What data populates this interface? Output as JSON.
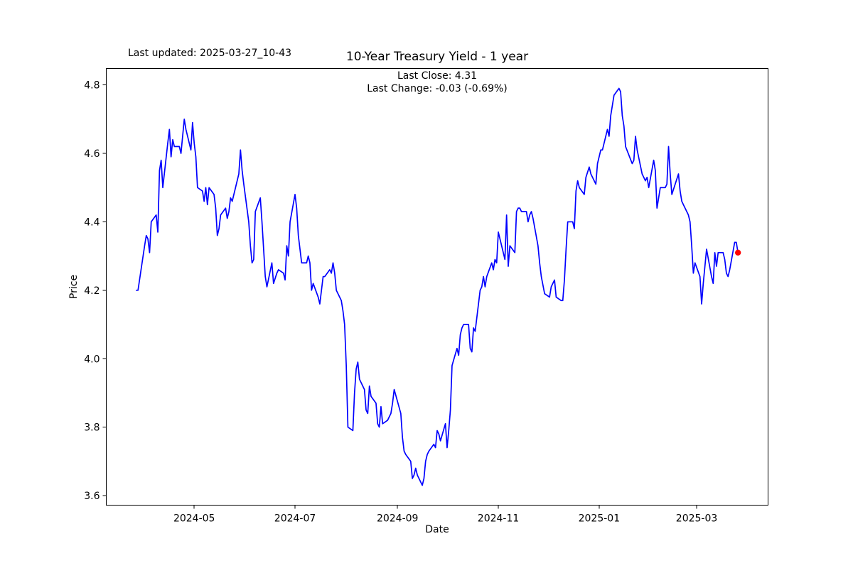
{
  "figure": {
    "last_updated": "Last updated: 2025-03-27_10-43",
    "title": "10-Year Treasury Yield - 1 year",
    "subtitle_line1": "Last Close: 4.31",
    "subtitle_line2": "Last Change: -0.03 (-0.69%)",
    "xlabel": "Date",
    "ylabel": "Price"
  },
  "chart_data": {
    "type": "line",
    "title": "10-Year Treasury Yield - 1 year",
    "xlabel": "Date",
    "ylabel": "Price",
    "last_close": 4.31,
    "last_change": -0.03,
    "last_change_pct": "-0.69%",
    "grid": false,
    "legend": null,
    "line_color": "#0000ff",
    "last_point_marker_color": "#ff0000",
    "axis_color": "#000000",
    "x_tick_labels": [
      "2024-05",
      "2024-07",
      "2024-09",
      "2024-11",
      "2025-01",
      "2025-03"
    ],
    "y_tick_labels": [
      "3.6",
      "3.8",
      "4.0",
      "4.2",
      "4.4",
      "4.6",
      "4.8"
    ],
    "ylim_data": [
      3.63,
      4.79
    ],
    "series": [
      {
        "name": "10-Year Treasury Yield",
        "points": [
          [
            "2024-03-27",
            4.2
          ],
          [
            "2024-03-28",
            4.2
          ],
          [
            "2024-04-01",
            4.33
          ],
          [
            "2024-04-02",
            4.36
          ],
          [
            "2024-04-03",
            4.35
          ],
          [
            "2024-04-04",
            4.31
          ],
          [
            "2024-04-05",
            4.4
          ],
          [
            "2024-04-08",
            4.42
          ],
          [
            "2024-04-09",
            4.37
          ],
          [
            "2024-04-10",
            4.55
          ],
          [
            "2024-04-11",
            4.58
          ],
          [
            "2024-04-12",
            4.5
          ],
          [
            "2024-04-15",
            4.63
          ],
          [
            "2024-04-16",
            4.67
          ],
          [
            "2024-04-17",
            4.59
          ],
          [
            "2024-04-18",
            4.64
          ],
          [
            "2024-04-19",
            4.62
          ],
          [
            "2024-04-22",
            4.62
          ],
          [
            "2024-04-23",
            4.6
          ],
          [
            "2024-04-24",
            4.65
          ],
          [
            "2024-04-25",
            4.7
          ],
          [
            "2024-04-26",
            4.67
          ],
          [
            "2024-04-29",
            4.61
          ],
          [
            "2024-04-30",
            4.69
          ],
          [
            "2024-05-01",
            4.63
          ],
          [
            "2024-05-02",
            4.59
          ],
          [
            "2024-05-03",
            4.5
          ],
          [
            "2024-05-06",
            4.49
          ],
          [
            "2024-05-07",
            4.46
          ],
          [
            "2024-05-08",
            4.5
          ],
          [
            "2024-05-09",
            4.45
          ],
          [
            "2024-05-10",
            4.5
          ],
          [
            "2024-05-13",
            4.48
          ],
          [
            "2024-05-14",
            4.44
          ],
          [
            "2024-05-15",
            4.36
          ],
          [
            "2024-05-16",
            4.38
          ],
          [
            "2024-05-17",
            4.42
          ],
          [
            "2024-05-20",
            4.44
          ],
          [
            "2024-05-21",
            4.41
          ],
          [
            "2024-05-22",
            4.43
          ],
          [
            "2024-05-23",
            4.47
          ],
          [
            "2024-05-24",
            4.46
          ],
          [
            "2024-05-28",
            4.54
          ],
          [
            "2024-05-29",
            4.61
          ],
          [
            "2024-05-30",
            4.55
          ],
          [
            "2024-05-31",
            4.51
          ],
          [
            "2024-06-03",
            4.4
          ],
          [
            "2024-06-04",
            4.33
          ],
          [
            "2024-06-05",
            4.28
          ],
          [
            "2024-06-06",
            4.29
          ],
          [
            "2024-06-07",
            4.43
          ],
          [
            "2024-06-10",
            4.47
          ],
          [
            "2024-06-11",
            4.4
          ],
          [
            "2024-06-12",
            4.32
          ],
          [
            "2024-06-13",
            4.24
          ],
          [
            "2024-06-14",
            4.21
          ],
          [
            "2024-06-17",
            4.28
          ],
          [
            "2024-06-18",
            4.22
          ],
          [
            "2024-06-20",
            4.25
          ],
          [
            "2024-06-21",
            4.26
          ],
          [
            "2024-06-24",
            4.25
          ],
          [
            "2024-06-25",
            4.23
          ],
          [
            "2024-06-26",
            4.33
          ],
          [
            "2024-06-27",
            4.3
          ],
          [
            "2024-06-28",
            4.4
          ],
          [
            "2024-07-01",
            4.48
          ],
          [
            "2024-07-02",
            4.44
          ],
          [
            "2024-07-03",
            4.36
          ],
          [
            "2024-07-05",
            4.28
          ],
          [
            "2024-07-08",
            4.28
          ],
          [
            "2024-07-09",
            4.3
          ],
          [
            "2024-07-10",
            4.28
          ],
          [
            "2024-07-11",
            4.2
          ],
          [
            "2024-07-12",
            4.22
          ],
          [
            "2024-07-15",
            4.18
          ],
          [
            "2024-07-16",
            4.16
          ],
          [
            "2024-07-17",
            4.2
          ],
          [
            "2024-07-18",
            4.24
          ],
          [
            "2024-07-19",
            4.24
          ],
          [
            "2024-07-22",
            4.26
          ],
          [
            "2024-07-23",
            4.25
          ],
          [
            "2024-07-24",
            4.28
          ],
          [
            "2024-07-25",
            4.25
          ],
          [
            "2024-07-26",
            4.2
          ],
          [
            "2024-07-29",
            4.17
          ],
          [
            "2024-07-30",
            4.14
          ],
          [
            "2024-07-31",
            4.1
          ],
          [
            "2024-08-01",
            3.98
          ],
          [
            "2024-08-02",
            3.8
          ],
          [
            "2024-08-05",
            3.79
          ],
          [
            "2024-08-06",
            3.9
          ],
          [
            "2024-08-07",
            3.97
          ],
          [
            "2024-08-08",
            3.99
          ],
          [
            "2024-08-09",
            3.94
          ],
          [
            "2024-08-12",
            3.91
          ],
          [
            "2024-08-13",
            3.85
          ],
          [
            "2024-08-14",
            3.84
          ],
          [
            "2024-08-15",
            3.92
          ],
          [
            "2024-08-16",
            3.89
          ],
          [
            "2024-08-19",
            3.87
          ],
          [
            "2024-08-20",
            3.81
          ],
          [
            "2024-08-21",
            3.8
          ],
          [
            "2024-08-22",
            3.86
          ],
          [
            "2024-08-23",
            3.81
          ],
          [
            "2024-08-26",
            3.82
          ],
          [
            "2024-08-27",
            3.83
          ],
          [
            "2024-08-28",
            3.84
          ],
          [
            "2024-08-29",
            3.87
          ],
          [
            "2024-08-30",
            3.91
          ],
          [
            "2024-09-03",
            3.84
          ],
          [
            "2024-09-04",
            3.77
          ],
          [
            "2024-09-05",
            3.73
          ],
          [
            "2024-09-06",
            3.72
          ],
          [
            "2024-09-09",
            3.7
          ],
          [
            "2024-09-10",
            3.65
          ],
          [
            "2024-09-11",
            3.66
          ],
          [
            "2024-09-12",
            3.68
          ],
          [
            "2024-09-13",
            3.66
          ],
          [
            "2024-09-16",
            3.63
          ],
          [
            "2024-09-17",
            3.65
          ],
          [
            "2024-09-18",
            3.7
          ],
          [
            "2024-09-19",
            3.72
          ],
          [
            "2024-09-20",
            3.73
          ],
          [
            "2024-09-23",
            3.75
          ],
          [
            "2024-09-24",
            3.74
          ],
          [
            "2024-09-25",
            3.79
          ],
          [
            "2024-09-26",
            3.78
          ],
          [
            "2024-09-27",
            3.76
          ],
          [
            "2024-09-30",
            3.81
          ],
          [
            "2024-10-01",
            3.74
          ],
          [
            "2024-10-02",
            3.79
          ],
          [
            "2024-10-03",
            3.85
          ],
          [
            "2024-10-04",
            3.98
          ],
          [
            "2024-10-07",
            4.03
          ],
          [
            "2024-10-08",
            4.01
          ],
          [
            "2024-10-09",
            4.07
          ],
          [
            "2024-10-10",
            4.09
          ],
          [
            "2024-10-11",
            4.1
          ],
          [
            "2024-10-14",
            4.1
          ],
          [
            "2024-10-15",
            4.03
          ],
          [
            "2024-10-16",
            4.02
          ],
          [
            "2024-10-17",
            4.09
          ],
          [
            "2024-10-18",
            4.08
          ],
          [
            "2024-10-21",
            4.2
          ],
          [
            "2024-10-22",
            4.21
          ],
          [
            "2024-10-23",
            4.24
          ],
          [
            "2024-10-24",
            4.21
          ],
          [
            "2024-10-25",
            4.24
          ],
          [
            "2024-10-28",
            4.28
          ],
          [
            "2024-10-29",
            4.26
          ],
          [
            "2024-10-30",
            4.29
          ],
          [
            "2024-10-31",
            4.28
          ],
          [
            "2024-11-01",
            4.37
          ],
          [
            "2024-11-04",
            4.31
          ],
          [
            "2024-11-05",
            4.29
          ],
          [
            "2024-11-06",
            4.42
          ],
          [
            "2024-11-07",
            4.27
          ],
          [
            "2024-11-08",
            4.33
          ],
          [
            "2024-11-11",
            4.31
          ],
          [
            "2024-11-12",
            4.43
          ],
          [
            "2024-11-13",
            4.44
          ],
          [
            "2024-11-14",
            4.44
          ],
          [
            "2024-11-15",
            4.43
          ],
          [
            "2024-11-18",
            4.43
          ],
          [
            "2024-11-19",
            4.4
          ],
          [
            "2024-11-20",
            4.42
          ],
          [
            "2024-11-21",
            4.43
          ],
          [
            "2024-11-22",
            4.41
          ],
          [
            "2024-11-25",
            4.33
          ],
          [
            "2024-11-26",
            4.28
          ],
          [
            "2024-11-27",
            4.24
          ],
          [
            "2024-11-29",
            4.19
          ],
          [
            "2024-12-02",
            4.18
          ],
          [
            "2024-12-03",
            4.21
          ],
          [
            "2024-12-04",
            4.22
          ],
          [
            "2024-12-05",
            4.23
          ],
          [
            "2024-12-06",
            4.18
          ],
          [
            "2024-12-09",
            4.17
          ],
          [
            "2024-12-10",
            4.17
          ],
          [
            "2024-12-11",
            4.23
          ],
          [
            "2024-12-12",
            4.32
          ],
          [
            "2024-12-13",
            4.4
          ],
          [
            "2024-12-16",
            4.4
          ],
          [
            "2024-12-17",
            4.38
          ],
          [
            "2024-12-18",
            4.49
          ],
          [
            "2024-12-19",
            4.52
          ],
          [
            "2024-12-20",
            4.5
          ],
          [
            "2024-12-23",
            4.48
          ],
          [
            "2024-12-24",
            4.53
          ],
          [
            "2024-12-26",
            4.56
          ],
          [
            "2024-12-27",
            4.54
          ],
          [
            "2024-12-30",
            4.51
          ],
          [
            "2024-12-31",
            4.57
          ],
          [
            "2025-01-02",
            4.61
          ],
          [
            "2025-01-03",
            4.61
          ],
          [
            "2025-01-06",
            4.67
          ],
          [
            "2025-01-07",
            4.65
          ],
          [
            "2025-01-08",
            4.71
          ],
          [
            "2025-01-10",
            4.77
          ],
          [
            "2025-01-13",
            4.79
          ],
          [
            "2025-01-14",
            4.78
          ],
          [
            "2025-01-15",
            4.71
          ],
          [
            "2025-01-16",
            4.68
          ],
          [
            "2025-01-17",
            4.62
          ],
          [
            "2025-01-21",
            4.57
          ],
          [
            "2025-01-22",
            4.58
          ],
          [
            "2025-01-23",
            4.65
          ],
          [
            "2025-01-24",
            4.61
          ],
          [
            "2025-01-27",
            4.54
          ],
          [
            "2025-01-28",
            4.53
          ],
          [
            "2025-01-29",
            4.52
          ],
          [
            "2025-01-30",
            4.53
          ],
          [
            "2025-01-31",
            4.5
          ],
          [
            "2025-02-03",
            4.58
          ],
          [
            "2025-02-04",
            4.55
          ],
          [
            "2025-02-05",
            4.44
          ],
          [
            "2025-02-06",
            4.47
          ],
          [
            "2025-02-07",
            4.5
          ],
          [
            "2025-02-10",
            4.5
          ],
          [
            "2025-02-11",
            4.51
          ],
          [
            "2025-02-12",
            4.62
          ],
          [
            "2025-02-13",
            4.54
          ],
          [
            "2025-02-14",
            4.48
          ],
          [
            "2025-02-18",
            4.54
          ],
          [
            "2025-02-19",
            4.49
          ],
          [
            "2025-02-20",
            4.46
          ],
          [
            "2025-02-21",
            4.45
          ],
          [
            "2025-02-24",
            4.42
          ],
          [
            "2025-02-25",
            4.4
          ],
          [
            "2025-02-26",
            4.33
          ],
          [
            "2025-02-27",
            4.25
          ],
          [
            "2025-02-28",
            4.28
          ],
          [
            "2025-03-03",
            4.24
          ],
          [
            "2025-03-04",
            4.16
          ],
          [
            "2025-03-05",
            4.22
          ],
          [
            "2025-03-06",
            4.27
          ],
          [
            "2025-03-07",
            4.32
          ],
          [
            "2025-03-10",
            4.24
          ],
          [
            "2025-03-11",
            4.22
          ],
          [
            "2025-03-12",
            4.31
          ],
          [
            "2025-03-13",
            4.27
          ],
          [
            "2025-03-14",
            4.31
          ],
          [
            "2025-03-17",
            4.31
          ],
          [
            "2025-03-18",
            4.29
          ],
          [
            "2025-03-19",
            4.25
          ],
          [
            "2025-03-20",
            4.24
          ],
          [
            "2025-03-21",
            4.26
          ],
          [
            "2025-03-24",
            4.34
          ],
          [
            "2025-03-25",
            4.34
          ],
          [
            "2025-03-26",
            4.31
          ]
        ]
      }
    ]
  }
}
